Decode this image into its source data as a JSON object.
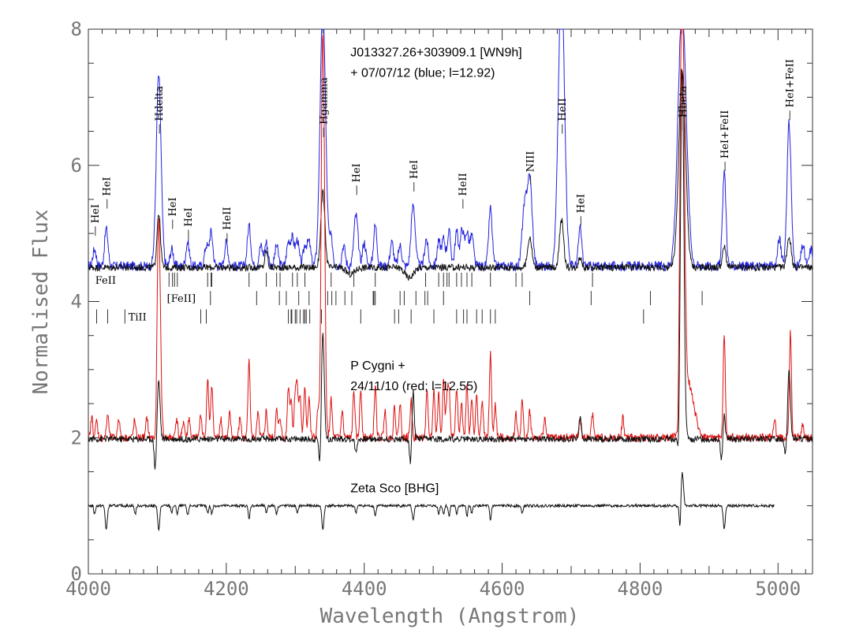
{
  "chart_data": {
    "type": "line",
    "xlabel": "Wavelength (Angstrom)",
    "ylabel": "Normalised Flux",
    "xlim": [
      4000,
      5050
    ],
    "ylim": [
      0,
      8
    ],
    "x_ticks": [
      4000,
      4200,
      4400,
      4600,
      4800,
      5000
    ],
    "y_ticks": [
      0,
      2,
      4,
      6,
      8
    ],
    "grid": false,
    "annotations": [
      {
        "text": "J013327.26+303909.1 [WN9h]",
        "x": 4380,
        "y": 7.6
      },
      {
        "text": "+ 07/07/12 (blue; l=12.92)",
        "x": 4380,
        "y": 7.3
      },
      {
        "text": "P Cygni +",
        "x": 4380,
        "y": 3.0
      },
      {
        "text": "24/11/10 (red; l=12.55)",
        "x": 4380,
        "y": 2.7
      },
      {
        "text": "Zeta Sco [BHG]",
        "x": 4380,
        "y": 1.2
      }
    ],
    "line_labels": [
      {
        "text": "HeI",
        "x": 4009
      },
      {
        "text": "HeI",
        "x": 4026
      },
      {
        "text": "Hdelta",
        "x": 4102
      },
      {
        "text": "HeI",
        "x": 4121
      },
      {
        "text": "HeI",
        "x": 4144
      },
      {
        "text": "HeII",
        "x": 4200
      },
      {
        "text": "Hgamma",
        "x": 4340
      },
      {
        "text": "HeI",
        "x": 4388
      },
      {
        "text": "HeI",
        "x": 4471
      },
      {
        "text": "HeII",
        "x": 4542
      },
      {
        "text": "NIII",
        "x": 4640
      },
      {
        "text": "HeII",
        "x": 4686
      },
      {
        "text": "HeI",
        "x": 4713
      },
      {
        "text": "Hbeta",
        "x": 4861
      },
      {
        "text": "HeI+FeII",
        "x": 4922
      },
      {
        "text": "HeI+FeII",
        "x": 5016
      }
    ],
    "tick_rows": [
      {
        "label": "FeII",
        "label_x": 4010,
        "y": 4.32,
        "positions": [
          4117,
          4122,
          4125,
          4129,
          4173,
          4178,
          4179,
          4233,
          4258,
          4273,
          4278,
          4296,
          4303,
          4314,
          4352,
          4385,
          4416,
          4489,
          4508,
          4515,
          4520,
          4523,
          4534,
          4541,
          4549,
          4556,
          4583,
          4620,
          4629,
          4731
        ]
      },
      {
        "label": "[FeII]",
        "label_x": 4114,
        "y": 4.05,
        "positions": [
          4177,
          4244,
          4277,
          4287,
          4305,
          4320,
          4347,
          4353,
          4359,
          4372,
          4382,
          4413,
          4414,
          4416,
          4452,
          4458,
          4475,
          4488,
          4492,
          4515,
          4640,
          4729,
          4815,
          4890
        ]
      },
      {
        "label": "TiII",
        "label_x": 4058,
        "y": 3.78,
        "positions": [
          4012,
          4028,
          4053,
          4163,
          4171,
          4290,
          4294,
          4295,
          4300,
          4302,
          4307,
          4312,
          4314,
          4316,
          4321,
          4338,
          4395,
          4444,
          4450,
          4468,
          4501,
          4534,
          4544,
          4549,
          4563,
          4571,
          4583,
          4590,
          4805
        ]
      }
    ],
    "series": [
      {
        "name": "blue",
        "color": "#2222dd",
        "xrange": [
          4000,
          5050
        ],
        "continuum": 4.52,
        "jitter": 0.07,
        "lines": [
          [
            4009,
            0.25,
            2.5
          ],
          [
            4026,
            0.55,
            2.5
          ],
          [
            4102,
            2.8,
            3.5
          ],
          [
            4121,
            0.25,
            2.5
          ],
          [
            4144,
            0.35,
            2.5
          ],
          [
            4171,
            0.3,
            2.5
          ],
          [
            4178,
            0.5,
            2.5
          ],
          [
            4200,
            0.35,
            2.5
          ],
          [
            4233,
            0.6,
            2.5
          ],
          [
            4250,
            0.3,
            2.5
          ],
          [
            4258,
            0.35,
            2.5
          ],
          [
            4273,
            0.3,
            2.5
          ],
          [
            4290,
            0.35,
            2.5
          ],
          [
            4296,
            0.4,
            2.5
          ],
          [
            4303,
            0.38,
            2.5
          ],
          [
            4314,
            0.3,
            2.5
          ],
          [
            4320,
            0.35,
            2.5
          ],
          [
            4340,
            3.8,
            4.0
          ],
          [
            4352,
            0.4,
            2.5
          ],
          [
            4370,
            0.3,
            2.5
          ],
          [
            4388,
            0.75,
            3.0
          ],
          [
            4400,
            0.35,
            2.5
          ],
          [
            4416,
            0.6,
            2.5
          ],
          [
            4440,
            0.35,
            2.5
          ],
          [
            4452,
            0.3,
            2.5
          ],
          [
            4471,
            0.9,
            3.0
          ],
          [
            4490,
            0.4,
            2.5
          ],
          [
            4508,
            0.35,
            2.5
          ],
          [
            4515,
            0.4,
            2.5
          ],
          [
            4523,
            0.5,
            2.5
          ],
          [
            4534,
            0.5,
            2.5
          ],
          [
            4542,
            0.55,
            2.5
          ],
          [
            4549,
            0.5,
            2.5
          ],
          [
            4556,
            0.45,
            2.5
          ],
          [
            4583,
            0.85,
            2.5
          ],
          [
            4630,
            0.5,
            2.5
          ],
          [
            4634,
            0.6,
            2.5
          ],
          [
            4640,
            1.3,
            3.5
          ],
          [
            4686,
            4.2,
            4.5
          ],
          [
            4713,
            0.55,
            2.5
          ],
          [
            4861,
            3.8,
            6.0
          ],
          [
            4922,
            1.4,
            2.5
          ],
          [
            5002,
            0.4,
            2.5
          ],
          [
            5016,
            2.1,
            3.0
          ],
          [
            5036,
            0.3,
            2.5
          ],
          [
            5048,
            0.25,
            2.5
          ]
        ]
      },
      {
        "name": "black-upper",
        "color": "#111111",
        "xrange": [
          4000,
          5050
        ],
        "continuum": 4.5,
        "jitter": 0.05,
        "lines": [
          [
            4102,
            0.8,
            2.5
          ],
          [
            4258,
            0.25,
            2.0
          ],
          [
            4340,
            1.1,
            3.0
          ],
          [
            4640,
            0.45,
            3.0
          ],
          [
            4686,
            0.7,
            3.0
          ],
          [
            4713,
            0.15,
            2.5
          ],
          [
            4861,
            2.9,
            5.0
          ],
          [
            4922,
            0.3,
            2.5
          ],
          [
            5016,
            0.45,
            3.0
          ],
          [
            4465,
            -0.15,
            6.0
          ],
          [
            4380,
            -0.1,
            6.0
          ]
        ]
      },
      {
        "name": "red",
        "color": "#dd1111",
        "xrange": [
          4000,
          5050
        ],
        "continuum": 2.0,
        "jitter": 0.06,
        "lines": [
          [
            4005,
            0.3,
            1.5
          ],
          [
            4012,
            0.25,
            1.5
          ],
          [
            4028,
            0.35,
            1.5
          ],
          [
            4044,
            0.3,
            1.5
          ],
          [
            4067,
            0.25,
            1.5
          ],
          [
            4085,
            0.3,
            1.5
          ],
          [
            4102,
            3.2,
            2.5
          ],
          [
            4098,
            -0.45,
            1.5
          ],
          [
            4128,
            0.3,
            1.5
          ],
          [
            4138,
            0.25,
            1.5
          ],
          [
            4146,
            0.3,
            1.5
          ],
          [
            4163,
            0.35,
            1.5
          ],
          [
            4173,
            0.85,
            1.5
          ],
          [
            4179,
            0.8,
            1.5
          ],
          [
            4192,
            0.3,
            1.5
          ],
          [
            4205,
            0.35,
            1.5
          ],
          [
            4220,
            0.3,
            1.5
          ],
          [
            4233,
            1.2,
            1.5
          ],
          [
            4246,
            0.35,
            1.5
          ],
          [
            4258,
            0.4,
            1.5
          ],
          [
            4273,
            0.4,
            1.5
          ],
          [
            4278,
            0.3,
            1.5
          ],
          [
            4290,
            0.75,
            1.5
          ],
          [
            4294,
            0.55,
            1.5
          ],
          [
            4300,
            0.65,
            1.5
          ],
          [
            4303,
            0.7,
            1.5
          ],
          [
            4307,
            0.6,
            1.5
          ],
          [
            4314,
            0.75,
            1.5
          ],
          [
            4320,
            0.6,
            1.5
          ],
          [
            4333,
            0.4,
            1.5
          ],
          [
            4340,
            6.0,
            2.5
          ],
          [
            4336,
            -0.5,
            1.5
          ],
          [
            4352,
            0.55,
            1.5
          ],
          [
            4368,
            0.4,
            1.5
          ],
          [
            4385,
            0.7,
            1.5
          ],
          [
            4395,
            0.7,
            1.5
          ],
          [
            4416,
            0.75,
            1.5
          ],
          [
            4430,
            0.4,
            1.5
          ],
          [
            4444,
            0.45,
            1.5
          ],
          [
            4452,
            0.5,
            1.5
          ],
          [
            4468,
            0.55,
            1.5
          ],
          [
            4491,
            0.65,
            1.5
          ],
          [
            4501,
            0.7,
            1.5
          ],
          [
            4508,
            0.65,
            1.5
          ],
          [
            4515,
            0.85,
            1.5
          ],
          [
            4520,
            0.55,
            1.5
          ],
          [
            4523,
            0.7,
            1.5
          ],
          [
            4534,
            0.7,
            1.5
          ],
          [
            4541,
            0.55,
            1.5
          ],
          [
            4549,
            0.8,
            1.5
          ],
          [
            4556,
            0.6,
            1.5
          ],
          [
            4563,
            0.6,
            1.5
          ],
          [
            4571,
            0.55,
            1.5
          ],
          [
            4583,
            1.25,
            1.5
          ],
          [
            4590,
            0.5,
            1.5
          ],
          [
            4620,
            0.35,
            1.5
          ],
          [
            4629,
            0.55,
            1.5
          ],
          [
            4640,
            0.4,
            1.5
          ],
          [
            4662,
            0.3,
            1.5
          ],
          [
            4713,
            0.3,
            1.5
          ],
          [
            4731,
            0.35,
            1.5
          ],
          [
            4775,
            0.3,
            1.5
          ],
          [
            4861,
            6.5,
            3.0
          ],
          [
            4870,
            0.8,
            8.0
          ],
          [
            4855,
            -0.55,
            1.5
          ],
          [
            4922,
            1.55,
            1.5
          ],
          [
            4995,
            0.3,
            1.5
          ],
          [
            5018,
            1.55,
            1.5
          ],
          [
            5036,
            0.2,
            1.5
          ]
        ]
      },
      {
        "name": "black-middle",
        "color": "#111111",
        "xrange": [
          4000,
          5050
        ],
        "continuum": 1.98,
        "jitter": 0.045,
        "lines": [
          [
            4102,
            0.85,
            2.0
          ],
          [
            4097,
            -0.45,
            1.5
          ],
          [
            4340,
            1.6,
            2.0
          ],
          [
            4336,
            -0.45,
            1.5
          ],
          [
            4388,
            -0.2,
            1.5
          ],
          [
            4471,
            0.7,
            1.5
          ],
          [
            4467,
            -0.35,
            1.5
          ],
          [
            4713,
            0.35,
            1.5
          ],
          [
            4861,
            5.4,
            2.5
          ],
          [
            4856,
            -0.45,
            1.5
          ],
          [
            4922,
            0.35,
            1.5
          ],
          [
            4918,
            -0.3,
            1.5
          ],
          [
            5016,
            1.0,
            2.0
          ],
          [
            5011,
            -0.25,
            1.5
          ]
        ]
      },
      {
        "name": "zeta-sco",
        "color": "#111111",
        "xrange": [
          4000,
          4995
        ],
        "continuum": 1.0,
        "jitter": 0.02,
        "lines": [
          [
            4009,
            -0.12,
            1.2
          ],
          [
            4026,
            -0.35,
            1.5
          ],
          [
            4068,
            -0.12,
            1.2
          ],
          [
            4102,
            -0.35,
            1.5
          ],
          [
            4121,
            -0.1,
            1.2
          ],
          [
            4129,
            -0.12,
            1.2
          ],
          [
            4144,
            -0.15,
            1.2
          ],
          [
            4173,
            -0.1,
            1.2
          ],
          [
            4179,
            -0.12,
            1.2
          ],
          [
            4233,
            -0.2,
            1.2
          ],
          [
            4258,
            -0.1,
            1.2
          ],
          [
            4273,
            -0.12,
            1.2
          ],
          [
            4303,
            -0.12,
            1.2
          ],
          [
            4340,
            -0.35,
            1.5
          ],
          [
            4388,
            -0.1,
            1.2
          ],
          [
            4416,
            -0.15,
            1.2
          ],
          [
            4471,
            -0.22,
            1.5
          ],
          [
            4508,
            -0.12,
            1.2
          ],
          [
            4515,
            -0.12,
            1.2
          ],
          [
            4523,
            -0.15,
            1.2
          ],
          [
            4534,
            -0.12,
            1.2
          ],
          [
            4549,
            -0.15,
            1.2
          ],
          [
            4556,
            -0.12,
            1.2
          ],
          [
            4583,
            -0.22,
            1.2
          ],
          [
            4629,
            -0.12,
            1.2
          ],
          [
            4861,
            0.5,
            1.8
          ],
          [
            4858,
            -0.4,
            1.2
          ],
          [
            4922,
            -0.35,
            1.5
          ]
        ]
      }
    ]
  }
}
